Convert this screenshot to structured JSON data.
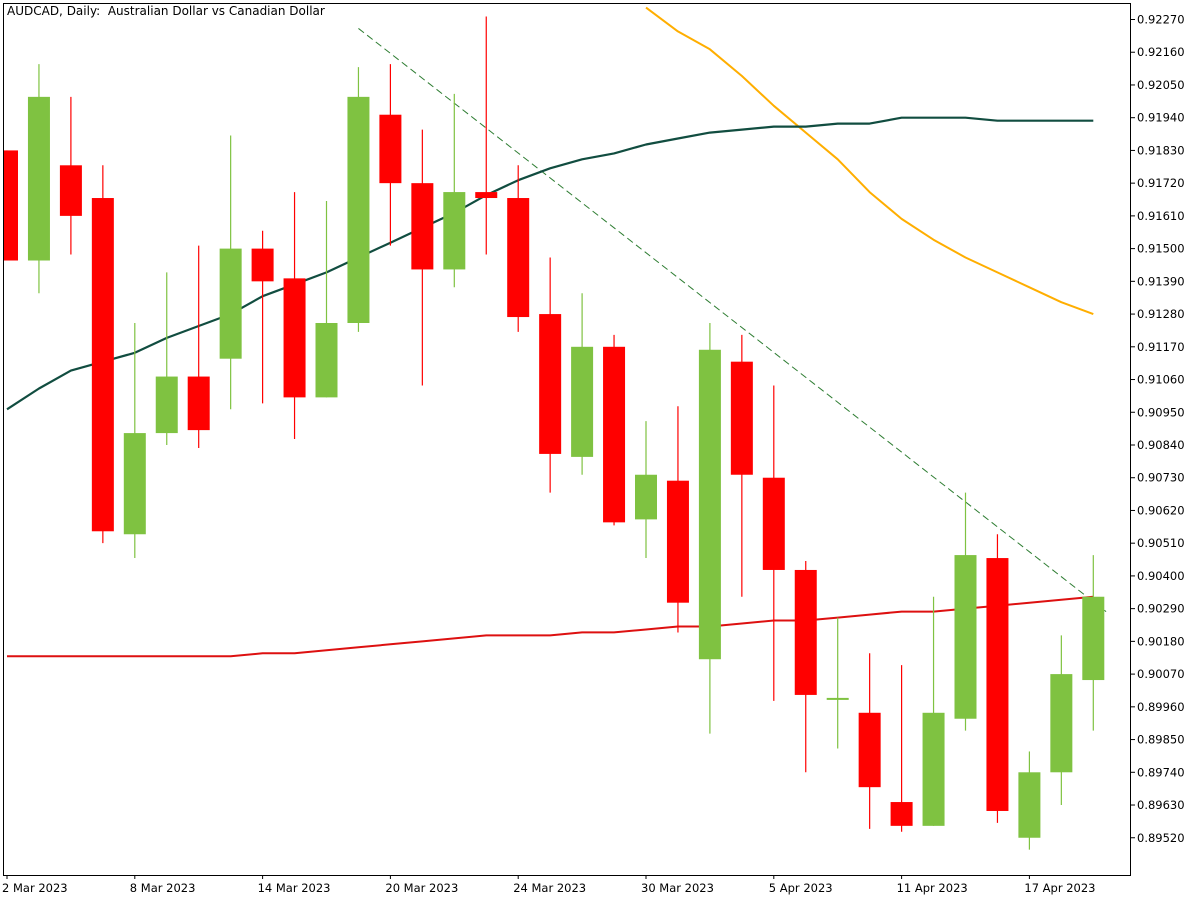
{
  "window": {
    "title": "AUDCAD, Daily:  Australian Dollar vs Canadian Dollar"
  },
  "chart_data": {
    "type": "candlestick",
    "symbol": "AUDCAD",
    "timeframe": "Daily",
    "description": "Australian Dollar vs Canadian Dollar",
    "colors": {
      "bull": "#7FC241",
      "bear": "#FF0000",
      "ma_fast": "#114D40",
      "ma_slow": "#FFAE00",
      "ma_long": "#DD1010",
      "trendline": "#2E7D32"
    },
    "y_ticks": [
      "0.92270",
      "0.92160",
      "0.92050",
      "0.91940",
      "0.91830",
      "0.91720",
      "0.91610",
      "0.91500",
      "0.91390",
      "0.91280",
      "0.91170",
      "0.91060",
      "0.90950",
      "0.90840",
      "0.90730",
      "0.90620",
      "0.90510",
      "0.90400",
      "0.90290",
      "0.90180",
      "0.90070",
      "0.89960",
      "0.89850",
      "0.89740",
      "0.89630",
      "0.89520"
    ],
    "ylim": [
      0.8942,
      0.9231
    ],
    "x_labels": [
      {
        "label": "2 Mar 2023",
        "index": 0
      },
      {
        "label": "8 Mar 2023",
        "index": 4
      },
      {
        "label": "14 Mar 2023",
        "index": 8
      },
      {
        "label": "20 Mar 2023",
        "index": 12
      },
      {
        "label": "24 Mar 2023",
        "index": 16
      },
      {
        "label": "30 Mar 2023",
        "index": 20
      },
      {
        "label": "5 Apr 2023",
        "index": 24
      },
      {
        "label": "11 Apr 2023",
        "index": 28
      },
      {
        "label": "17 Apr 2023",
        "index": 32
      }
    ],
    "candles": [
      {
        "o": 0.9183,
        "h": 0.9183,
        "l": 0.9146,
        "c": 0.9146
      },
      {
        "o": 0.9146,
        "h": 0.9212,
        "l": 0.9135,
        "c": 0.9201
      },
      {
        "o": 0.9178,
        "h": 0.9201,
        "l": 0.9148,
        "c": 0.9161
      },
      {
        "o": 0.9167,
        "h": 0.9178,
        "l": 0.9051,
        "c": 0.9055
      },
      {
        "o": 0.9054,
        "h": 0.9125,
        "l": 0.9046,
        "c": 0.9088
      },
      {
        "o": 0.9088,
        "h": 0.9142,
        "l": 0.9084,
        "c": 0.9107
      },
      {
        "o": 0.9107,
        "h": 0.9151,
        "l": 0.9083,
        "c": 0.9089
      },
      {
        "o": 0.9113,
        "h": 0.9188,
        "l": 0.9096,
        "c": 0.915
      },
      {
        "o": 0.915,
        "h": 0.9156,
        "l": 0.9098,
        "c": 0.9139
      },
      {
        "o": 0.914,
        "h": 0.9169,
        "l": 0.9086,
        "c": 0.91
      },
      {
        "o": 0.91,
        "h": 0.9166,
        "l": 0.91,
        "c": 0.9125
      },
      {
        "o": 0.9125,
        "h": 0.9211,
        "l": 0.9122,
        "c": 0.9201
      },
      {
        "o": 0.9195,
        "h": 0.9212,
        "l": 0.9151,
        "c": 0.9172
      },
      {
        "o": 0.9172,
        "h": 0.919,
        "l": 0.9104,
        "c": 0.9143
      },
      {
        "o": 0.9143,
        "h": 0.9202,
        "l": 0.9137,
        "c": 0.9169
      },
      {
        "o": 0.9169,
        "h": 0.9228,
        "l": 0.9148,
        "c": 0.9167
      },
      {
        "o": 0.9167,
        "h": 0.9178,
        "l": 0.9122,
        "c": 0.9127
      },
      {
        "o": 0.9128,
        "h": 0.9147,
        "l": 0.9068,
        "c": 0.9081
      },
      {
        "o": 0.908,
        "h": 0.9135,
        "l": 0.9074,
        "c": 0.9117
      },
      {
        "o": 0.9117,
        "h": 0.9121,
        "l": 0.9057,
        "c": 0.9058
      },
      {
        "o": 0.9059,
        "h": 0.9092,
        "l": 0.9046,
        "c": 0.9074
      },
      {
        "o": 0.9072,
        "h": 0.9097,
        "l": 0.9021,
        "c": 0.9031
      },
      {
        "o": 0.9012,
        "h": 0.9125,
        "l": 0.8987,
        "c": 0.9116
      },
      {
        "o": 0.9112,
        "h": 0.9121,
        "l": 0.9033,
        "c": 0.9074
      },
      {
        "o": 0.9073,
        "h": 0.9104,
        "l": 0.8998,
        "c": 0.9042
      },
      {
        "o": 0.9042,
        "h": 0.9045,
        "l": 0.8974,
        "c": 0.9
      },
      {
        "o": 0.8999,
        "h": 0.9026,
        "l": 0.8982,
        "c": 0.8999
      },
      {
        "o": 0.8994,
        "h": 0.9014,
        "l": 0.8955,
        "c": 0.8969
      },
      {
        "o": 0.8964,
        "h": 0.901,
        "l": 0.8954,
        "c": 0.8956
      },
      {
        "o": 0.8956,
        "h": 0.9033,
        "l": 0.8956,
        "c": 0.8994
      },
      {
        "o": 0.8992,
        "h": 0.9068,
        "l": 0.8988,
        "c": 0.9047
      },
      {
        "o": 0.9046,
        "h": 0.9054,
        "l": 0.8957,
        "c": 0.8961
      },
      {
        "o": 0.8952,
        "h": 0.8981,
        "l": 0.8948,
        "c": 0.8974
      },
      {
        "o": 0.8974,
        "h": 0.902,
        "l": 0.8963,
        "c": 0.9007
      },
      {
        "o": 0.9005,
        "h": 0.9047,
        "l": 0.8988,
        "c": 0.9033
      }
    ],
    "ma_fast": [
      [
        0,
        0.9096
      ],
      [
        1,
        0.9103
      ],
      [
        2,
        0.9109
      ],
      [
        3,
        0.9112
      ],
      [
        4,
        0.9115
      ],
      [
        5,
        0.912
      ],
      [
        6,
        0.9124
      ],
      [
        7,
        0.9128
      ],
      [
        8,
        0.9134
      ],
      [
        9,
        0.9138
      ],
      [
        10,
        0.9142
      ],
      [
        11,
        0.9147
      ],
      [
        12,
        0.9152
      ],
      [
        13,
        0.9157
      ],
      [
        14,
        0.9162
      ],
      [
        15,
        0.9168
      ],
      [
        16,
        0.9173
      ],
      [
        17,
        0.9177
      ],
      [
        18,
        0.918
      ],
      [
        19,
        0.9182
      ],
      [
        20,
        0.9185
      ],
      [
        21,
        0.9187
      ],
      [
        22,
        0.9189
      ],
      [
        23,
        0.919
      ],
      [
        24,
        0.9191
      ],
      [
        25,
        0.9191
      ],
      [
        26,
        0.9192
      ],
      [
        27,
        0.9192
      ],
      [
        28,
        0.9194
      ],
      [
        29,
        0.9194
      ],
      [
        30,
        0.9194
      ],
      [
        31,
        0.9193
      ],
      [
        32,
        0.9193
      ],
      [
        33,
        0.9193
      ],
      [
        34,
        0.9193
      ]
    ],
    "ma_slow": [
      [
        20,
        0.9231
      ],
      [
        21,
        0.9223
      ],
      [
        22,
        0.9217
      ],
      [
        23,
        0.9208
      ],
      [
        24,
        0.9198
      ],
      [
        25,
        0.9189
      ],
      [
        26,
        0.918
      ],
      [
        27,
        0.9169
      ],
      [
        28,
        0.916
      ],
      [
        29,
        0.9153
      ],
      [
        30,
        0.9147
      ],
      [
        31,
        0.9142
      ],
      [
        32,
        0.9137
      ],
      [
        33,
        0.9132
      ],
      [
        34,
        0.9128
      ]
    ],
    "ma_long": [
      [
        0,
        0.9013
      ],
      [
        1,
        0.9013
      ],
      [
        2,
        0.9013
      ],
      [
        3,
        0.9013
      ],
      [
        4,
        0.9013
      ],
      [
        5,
        0.9013
      ],
      [
        6,
        0.9013
      ],
      [
        7,
        0.9013
      ],
      [
        8,
        0.9014
      ],
      [
        9,
        0.9014
      ],
      [
        10,
        0.9015
      ],
      [
        11,
        0.9016
      ],
      [
        12,
        0.9017
      ],
      [
        13,
        0.9018
      ],
      [
        14,
        0.9019
      ],
      [
        15,
        0.902
      ],
      [
        16,
        0.902
      ],
      [
        17,
        0.902
      ],
      [
        18,
        0.9021
      ],
      [
        19,
        0.9021
      ],
      [
        20,
        0.9022
      ],
      [
        21,
        0.9023
      ],
      [
        22,
        0.9023
      ],
      [
        23,
        0.9024
      ],
      [
        24,
        0.9025
      ],
      [
        25,
        0.9025
      ],
      [
        26,
        0.9026
      ],
      [
        27,
        0.9027
      ],
      [
        28,
        0.9028
      ],
      [
        29,
        0.9028
      ],
      [
        30,
        0.9029
      ],
      [
        31,
        0.903
      ],
      [
        32,
        0.9031
      ],
      [
        33,
        0.9032
      ],
      [
        34,
        0.9033
      ]
    ],
    "trendline": {
      "from": [
        11,
        0.9224
      ],
      "to": [
        34.4,
        0.9028
      ]
    }
  }
}
